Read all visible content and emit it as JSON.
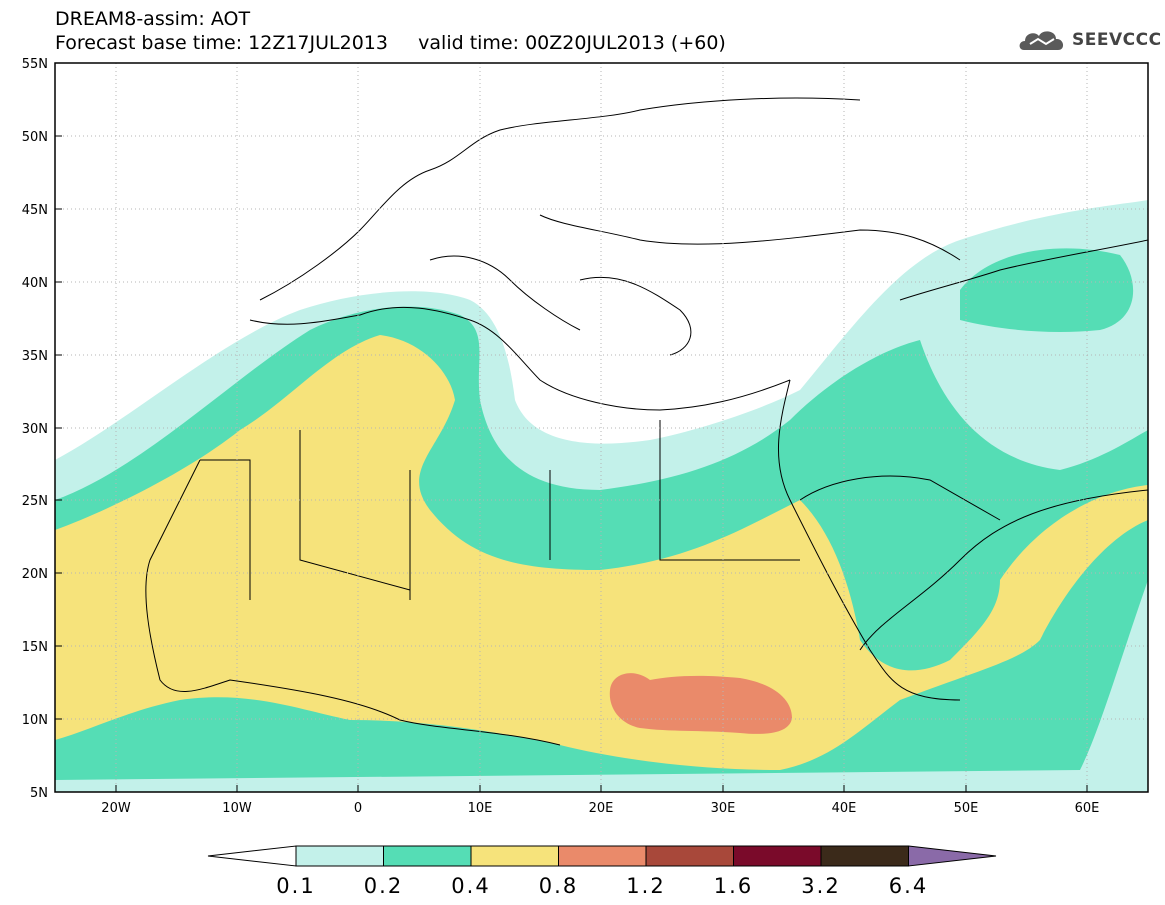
{
  "header": {
    "title_line1": "DREAM8-assim: AOT",
    "title_line2": "Forecast base time: 12Z17JUL2013     valid time: 00Z20JUL2013 (+60)",
    "logo_text": "SEEVCCC"
  },
  "map": {
    "lat_labels": [
      "55N",
      "50N",
      "45N",
      "40N",
      "35N",
      "30N",
      "25N",
      "20N",
      "15N",
      "10N",
      "5N"
    ],
    "lon_labels": [
      "20W",
      "10W",
      "0",
      "10E",
      "20E",
      "30E",
      "40E",
      "50E",
      "60E"
    ],
    "extent": {
      "lon_min": -25,
      "lon_max": 65,
      "lat_min": 5,
      "lat_max": 55
    }
  },
  "colorbar": {
    "labels": [
      "0.1",
      "0.2",
      "0.4",
      "0.8",
      "1.2",
      "1.6",
      "3.2",
      "6.4"
    ],
    "colors": [
      "#ffffff",
      "#c3f1ea",
      "#55ddb5",
      "#f6e37b",
      "#ea8a6a",
      "#a8483a",
      "#7a0a2a",
      "#3b2a1a",
      "#8a6aa8"
    ]
  }
}
